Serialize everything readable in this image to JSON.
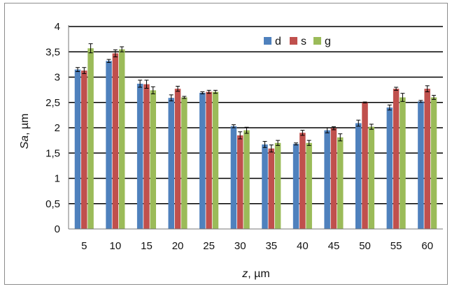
{
  "chart_data": {
    "type": "bar",
    "title": "",
    "xlabel": "z, µm",
    "ylabel": "Sa, µm",
    "xlabel_parts": {
      "var": "z",
      "unit": ", µm"
    },
    "ylabel_parts": {
      "var": "Sa",
      "unit": ", µm"
    },
    "categories": [
      "5",
      "10",
      "15",
      "20",
      "25",
      "30",
      "35",
      "40",
      "45",
      "50",
      "55",
      "60"
    ],
    "ylim": [
      0,
      4
    ],
    "yticks": [
      0,
      0.5,
      1,
      1.5,
      2,
      2.5,
      3,
      3.5,
      4
    ],
    "ytick_labels": [
      "0",
      "0,5",
      "1",
      "1,5",
      "2",
      "2,5",
      "3",
      "3,5",
      "4"
    ],
    "grid": true,
    "legend_position": "top-right",
    "series": [
      {
        "name": "d",
        "color": "#4f81bd",
        "values": [
          3.15,
          3.32,
          2.87,
          2.59,
          2.69,
          2.03,
          1.67,
          1.68,
          1.95,
          2.09,
          2.4,
          2.52
        ],
        "errors": [
          0.04,
          0.03,
          0.07,
          0.06,
          0.02,
          0.03,
          0.06,
          0.02,
          0.05,
          0.06,
          0.05,
          0.02
        ]
      },
      {
        "name": "s",
        "color": "#c0504d",
        "values": [
          3.13,
          3.47,
          2.86,
          2.77,
          2.71,
          1.85,
          1.59,
          1.9,
          1.99,
          2.5,
          2.77,
          2.77
        ],
        "errors": [
          0.06,
          0.07,
          0.08,
          0.05,
          0.03,
          0.07,
          0.07,
          0.05,
          0.03,
          0.01,
          0.03,
          0.06
        ]
      },
      {
        "name": "g",
        "color": "#9bbb59",
        "values": [
          3.57,
          3.55,
          2.74,
          2.6,
          2.71,
          1.95,
          1.7,
          1.7,
          1.81,
          2.02,
          2.6,
          2.6
        ],
        "errors": [
          0.09,
          0.05,
          0.07,
          0.02,
          0.03,
          0.06,
          0.05,
          0.05,
          0.07,
          0.05,
          0.08,
          0.04
        ]
      }
    ]
  }
}
